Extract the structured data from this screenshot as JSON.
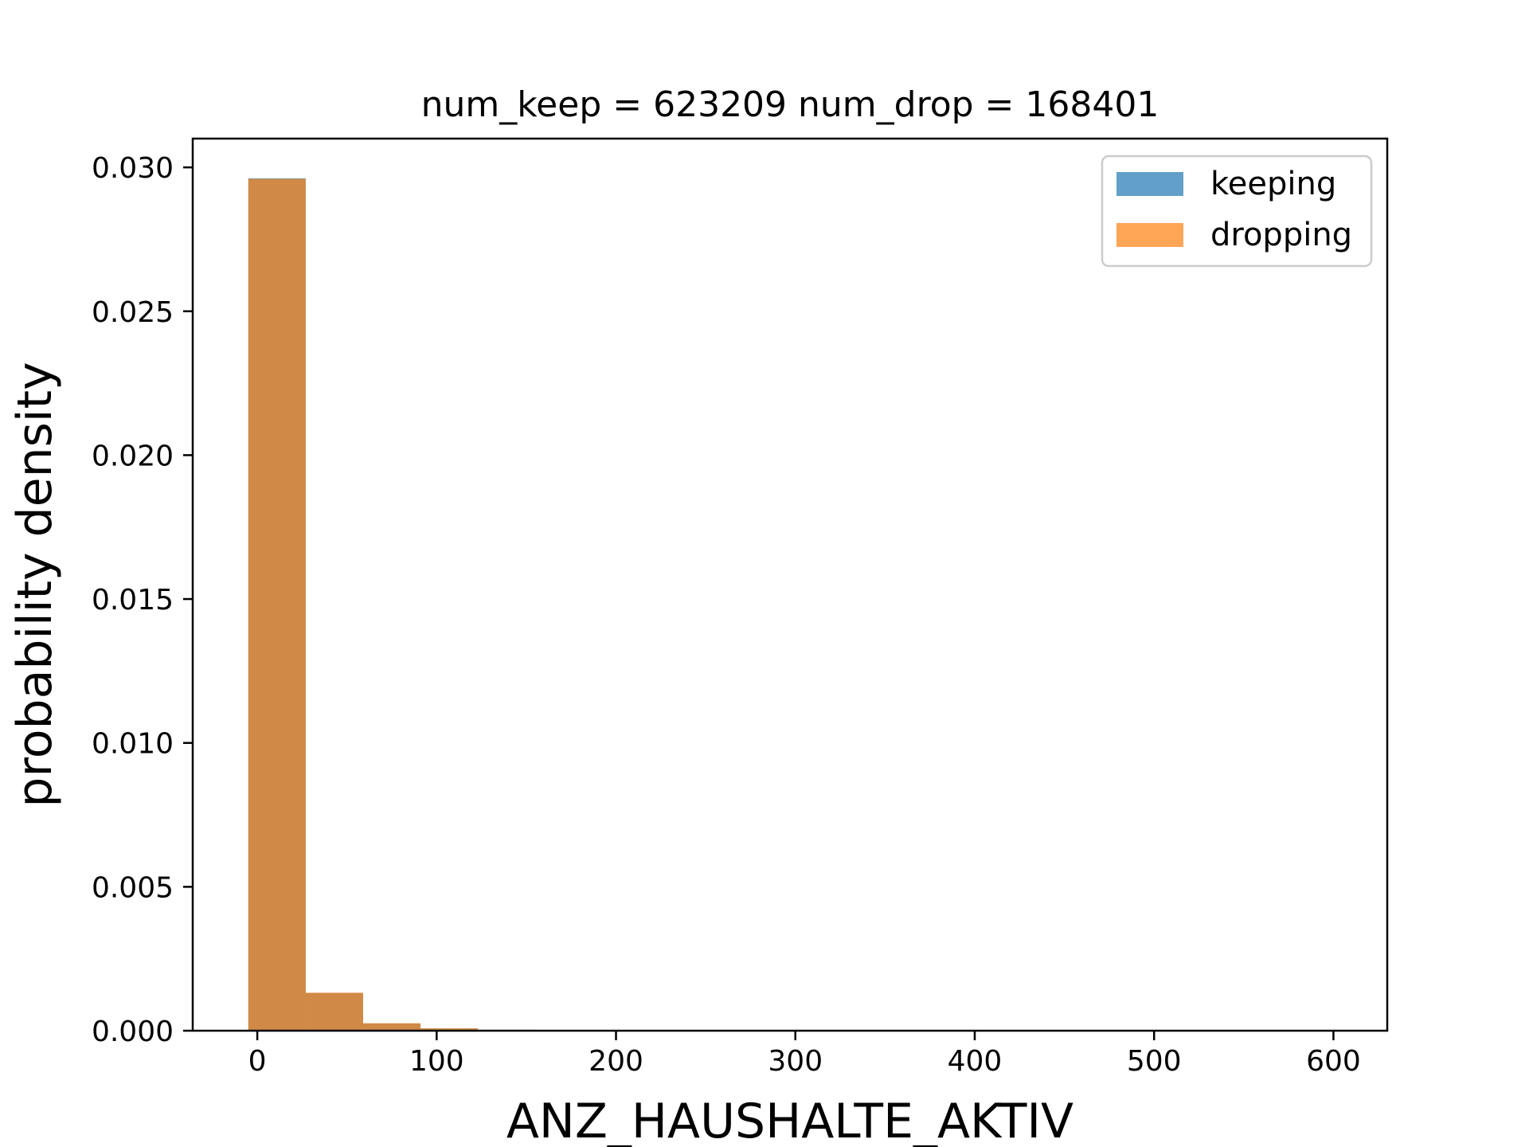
{
  "chart_data": {
    "type": "bar",
    "title": "num_keep = 623209  num_drop = 168401",
    "xlabel": "ANZ_HAUSHALTE_AKTIV",
    "ylabel": "probability density",
    "xlim": [
      -36,
      630
    ],
    "ylim": [
      0,
      0.031
    ],
    "xticks": [
      0,
      100,
      200,
      300,
      400,
      500,
      600
    ],
    "yticks": [
      0.0,
      0.005,
      0.01,
      0.015,
      0.02,
      0.025,
      0.03
    ],
    "ytick_labels": [
      "0.000",
      "0.005",
      "0.010",
      "0.015",
      "0.020",
      "0.025",
      "0.030"
    ],
    "grid": false,
    "legend_position": "top-right",
    "bin_edges": [
      -5,
      27,
      59,
      91,
      123,
      155,
      187
    ],
    "series": [
      {
        "name": "keeping",
        "color": "#1f77b4",
        "alpha": 0.7,
        "values": [
          0.02962,
          0.00131,
          0.00025,
          8e-05,
          3e-05,
          1e-05
        ]
      },
      {
        "name": "dropping",
        "color": "#ff7f0e",
        "alpha": 0.7,
        "values": [
          0.0296,
          0.00132,
          0.00026,
          8e-05,
          3e-05,
          1e-05
        ]
      }
    ]
  }
}
